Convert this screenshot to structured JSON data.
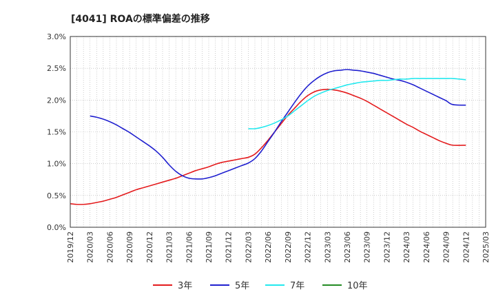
{
  "chart_data": {
    "type": "line",
    "title": "[4041]  ROAの標準偏差の推移",
    "xlabel": "",
    "ylabel": "",
    "ylim": [
      0,
      3.0
    ],
    "yticks": [
      "0.0%",
      "0.5%",
      "1.0%",
      "1.5%",
      "2.0%",
      "2.5%",
      "3.0%"
    ],
    "xticks": [
      "2019/12",
      "2020/03",
      "2020/06",
      "2020/09",
      "2020/12",
      "2021/03",
      "2021/06",
      "2021/09",
      "2021/12",
      "2022/03",
      "2022/06",
      "2022/09",
      "2022/12",
      "2023/03",
      "2023/06",
      "2023/09",
      "2023/12",
      "2024/03",
      "2024/06",
      "2024/09",
      "2024/12",
      "2025/03"
    ],
    "grid": true,
    "legend_position": "bottom",
    "series": [
      {
        "name": "3年",
        "color": "#e41a1c",
        "points": [
          [
            "2019/12",
            0.37
          ],
          [
            "2020/01",
            0.36
          ],
          [
            "2020/02",
            0.36
          ],
          [
            "2020/03",
            0.37
          ],
          [
            "2020/04",
            0.39
          ],
          [
            "2020/05",
            0.41
          ],
          [
            "2020/06",
            0.44
          ],
          [
            "2020/07",
            0.47
          ],
          [
            "2020/08",
            0.51
          ],
          [
            "2020/09",
            0.55
          ],
          [
            "2020/10",
            0.59
          ],
          [
            "2020/11",
            0.62
          ],
          [
            "2020/12",
            0.65
          ],
          [
            "2021/01",
            0.68
          ],
          [
            "2021/02",
            0.71
          ],
          [
            "2021/03",
            0.74
          ],
          [
            "2021/04",
            0.77
          ],
          [
            "2021/05",
            0.81
          ],
          [
            "2021/06",
            0.85
          ],
          [
            "2021/07",
            0.89
          ],
          [
            "2021/08",
            0.92
          ],
          [
            "2021/09",
            0.95
          ],
          [
            "2021/10",
            0.99
          ],
          [
            "2021/11",
            1.02
          ],
          [
            "2021/12",
            1.04
          ],
          [
            "2022/01",
            1.06
          ],
          [
            "2022/02",
            1.08
          ],
          [
            "2022/03",
            1.1
          ],
          [
            "2022/04",
            1.15
          ],
          [
            "2022/05",
            1.25
          ],
          [
            "2022/06",
            1.37
          ],
          [
            "2022/07",
            1.5
          ],
          [
            "2022/08",
            1.63
          ],
          [
            "2022/09",
            1.76
          ],
          [
            "2022/10",
            1.87
          ],
          [
            "2022/11",
            1.98
          ],
          [
            "2022/12",
            2.07
          ],
          [
            "2023/01",
            2.13
          ],
          [
            "2023/02",
            2.16
          ],
          [
            "2023/03",
            2.17
          ],
          [
            "2023/04",
            2.16
          ],
          [
            "2023/05",
            2.14
          ],
          [
            "2023/06",
            2.11
          ],
          [
            "2023/07",
            2.07
          ],
          [
            "2023/08",
            2.03
          ],
          [
            "2023/09",
            1.98
          ],
          [
            "2023/10",
            1.92
          ],
          [
            "2023/11",
            1.86
          ],
          [
            "2023/12",
            1.8
          ],
          [
            "2024/01",
            1.74
          ],
          [
            "2024/02",
            1.68
          ],
          [
            "2024/03",
            1.62
          ],
          [
            "2024/04",
            1.57
          ],
          [
            "2024/05",
            1.51
          ],
          [
            "2024/06",
            1.46
          ],
          [
            "2024/07",
            1.41
          ],
          [
            "2024/08",
            1.36
          ],
          [
            "2024/09",
            1.32
          ],
          [
            "2024/10",
            1.29
          ],
          [
            "2024/12",
            1.29
          ]
        ]
      },
      {
        "name": "5年",
        "color": "#1f1fcf",
        "points": [
          [
            "2020/03",
            1.75
          ],
          [
            "2020/04",
            1.73
          ],
          [
            "2020/05",
            1.7
          ],
          [
            "2020/06",
            1.66
          ],
          [
            "2020/07",
            1.61
          ],
          [
            "2020/08",
            1.55
          ],
          [
            "2020/09",
            1.49
          ],
          [
            "2020/10",
            1.42
          ],
          [
            "2020/11",
            1.35
          ],
          [
            "2020/12",
            1.28
          ],
          [
            "2021/01",
            1.2
          ],
          [
            "2021/02",
            1.1
          ],
          [
            "2021/03",
            0.98
          ],
          [
            "2021/04",
            0.88
          ],
          [
            "2021/05",
            0.81
          ],
          [
            "2021/06",
            0.77
          ],
          [
            "2021/07",
            0.76
          ],
          [
            "2021/08",
            0.76
          ],
          [
            "2021/09",
            0.78
          ],
          [
            "2021/10",
            0.81
          ],
          [
            "2021/11",
            0.85
          ],
          [
            "2021/12",
            0.89
          ],
          [
            "2022/01",
            0.93
          ],
          [
            "2022/02",
            0.97
          ],
          [
            "2022/03",
            1.01
          ],
          [
            "2022/04",
            1.08
          ],
          [
            "2022/05",
            1.2
          ],
          [
            "2022/06",
            1.35
          ],
          [
            "2022/07",
            1.5
          ],
          [
            "2022/08",
            1.66
          ],
          [
            "2022/09",
            1.81
          ],
          [
            "2022/10",
            1.96
          ],
          [
            "2022/11",
            2.1
          ],
          [
            "2022/12",
            2.22
          ],
          [
            "2023/01",
            2.31
          ],
          [
            "2023/02",
            2.38
          ],
          [
            "2023/03",
            2.43
          ],
          [
            "2023/04",
            2.46
          ],
          [
            "2023/05",
            2.47
          ],
          [
            "2023/06",
            2.48
          ],
          [
            "2023/07",
            2.47
          ],
          [
            "2023/08",
            2.46
          ],
          [
            "2023/09",
            2.44
          ],
          [
            "2023/10",
            2.42
          ],
          [
            "2023/11",
            2.39
          ],
          [
            "2023/12",
            2.36
          ],
          [
            "2024/01",
            2.33
          ],
          [
            "2024/02",
            2.31
          ],
          [
            "2024/03",
            2.28
          ],
          [
            "2024/04",
            2.24
          ],
          [
            "2024/05",
            2.19
          ],
          [
            "2024/06",
            2.14
          ],
          [
            "2024/07",
            2.09
          ],
          [
            "2024/08",
            2.04
          ],
          [
            "2024/09",
            1.99
          ],
          [
            "2024/10",
            1.93
          ],
          [
            "2024/12",
            1.92
          ]
        ]
      },
      {
        "name": "7年",
        "color": "#22e8ee",
        "points": [
          [
            "2022/03",
            1.55
          ],
          [
            "2022/04",
            1.55
          ],
          [
            "2022/05",
            1.57
          ],
          [
            "2022/06",
            1.6
          ],
          [
            "2022/07",
            1.64
          ],
          [
            "2022/08",
            1.69
          ],
          [
            "2022/09",
            1.75
          ],
          [
            "2022/10",
            1.83
          ],
          [
            "2022/11",
            1.91
          ],
          [
            "2022/12",
            1.99
          ],
          [
            "2023/01",
            2.06
          ],
          [
            "2023/02",
            2.11
          ],
          [
            "2023/03",
            2.15
          ],
          [
            "2023/04",
            2.18
          ],
          [
            "2023/05",
            2.21
          ],
          [
            "2023/06",
            2.24
          ],
          [
            "2023/07",
            2.26
          ],
          [
            "2023/08",
            2.28
          ],
          [
            "2023/09",
            2.29
          ],
          [
            "2023/10",
            2.3
          ],
          [
            "2023/11",
            2.31
          ],
          [
            "2023/12",
            2.31
          ],
          [
            "2024/01",
            2.32
          ],
          [
            "2024/02",
            2.33
          ],
          [
            "2024/03",
            2.33
          ],
          [
            "2024/04",
            2.34
          ],
          [
            "2024/05",
            2.34
          ],
          [
            "2024/06",
            2.34
          ],
          [
            "2024/07",
            2.34
          ],
          [
            "2024/08",
            2.34
          ],
          [
            "2024/09",
            2.34
          ],
          [
            "2024/10",
            2.34
          ],
          [
            "2024/11",
            2.33
          ],
          [
            "2024/12",
            2.32
          ]
        ]
      },
      {
        "name": "10年",
        "color": "#228b22",
        "points": []
      }
    ]
  }
}
